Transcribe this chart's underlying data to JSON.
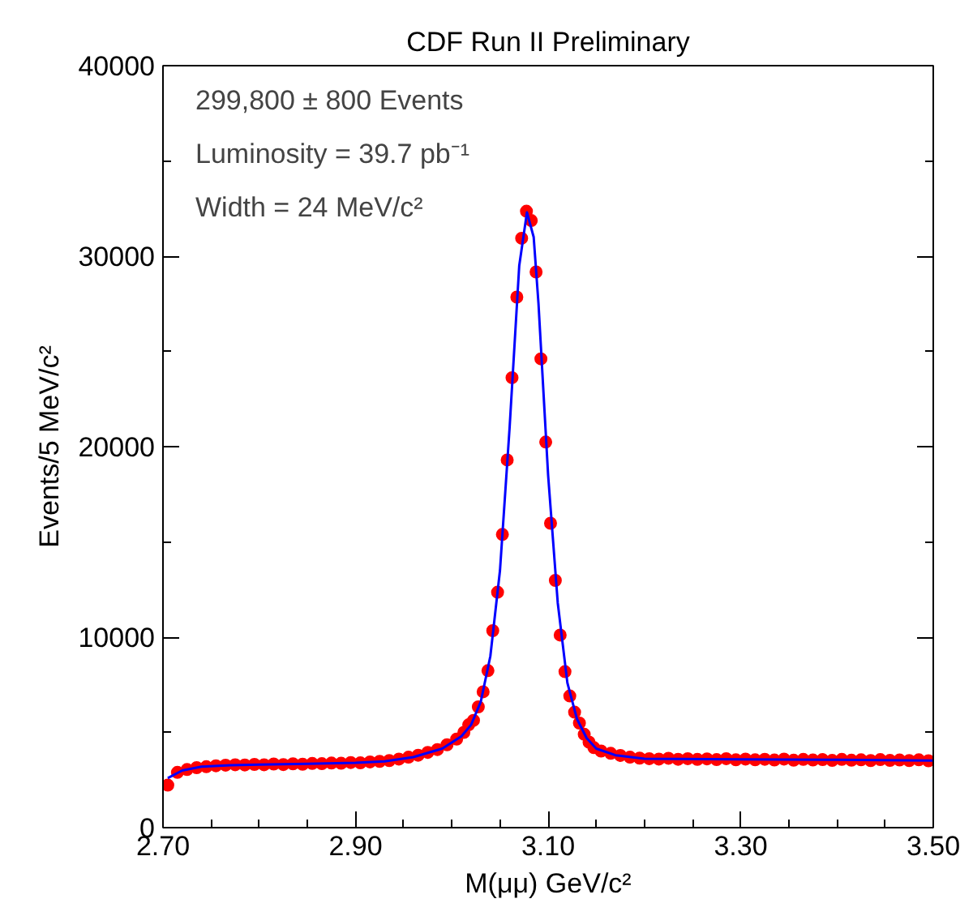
{
  "chart_data": {
    "type": "scatter",
    "title": "CDF Run II Preliminary",
    "xlabel": "M(μμ) GeV/c²",
    "ylabel": "Events/5 MeV/c²",
    "annotations": [
      "299,800 ± 800 Events",
      "Luminosity = 39.7 pb⁻¹",
      "Width = 24 MeV/c²"
    ],
    "xlim": [
      2.7,
      3.5
    ],
    "xticks": [
      {
        "value": 2.7,
        "label": "2.70"
      },
      {
        "value": 2.75,
        "label": null
      },
      {
        "value": 2.8,
        "label": null
      },
      {
        "value": 2.85,
        "label": null
      },
      {
        "value": 2.9,
        "label": "2.90"
      },
      {
        "value": 2.95,
        "label": null
      },
      {
        "value": 3.0,
        "label": null
      },
      {
        "value": 3.05,
        "label": null
      },
      {
        "value": 3.1,
        "label": "3.10"
      },
      {
        "value": 3.15,
        "label": null
      },
      {
        "value": 3.2,
        "label": null
      },
      {
        "value": 3.25,
        "label": null
      },
      {
        "value": 3.3,
        "label": "3.30"
      },
      {
        "value": 3.35,
        "label": null
      },
      {
        "value": 3.4,
        "label": null
      },
      {
        "value": 3.45,
        "label": null
      },
      {
        "value": 3.5,
        "label": "3.50"
      }
    ],
    "ylim": [
      0,
      40000
    ],
    "yticks": [
      0,
      {
        "value": 5000,
        "label": null
      },
      10000,
      {
        "value": 15000,
        "label": null
      },
      20000,
      {
        "value": 25000,
        "label": null
      },
      30000,
      {
        "value": 35000,
        "label": null
      },
      40000
    ],
    "grid": false,
    "marker": "circle",
    "series": [
      {
        "color": "#ff0000",
        "x": [
          2.705,
          2.715,
          2.725,
          2.735,
          2.745,
          2.755,
          2.765,
          2.775,
          2.785,
          2.795,
          2.805,
          2.815,
          2.825,
          2.835,
          2.845,
          2.855,
          2.865,
          2.875,
          2.885,
          2.895,
          2.905,
          2.915,
          2.925,
          2.935,
          2.945,
          2.955,
          2.965,
          2.975,
          2.985,
          2.995,
          3.005,
          3.0125,
          3.0175,
          3.0225,
          3.0275,
          3.0325,
          3.0375,
          3.0425,
          3.0475,
          3.0525,
          3.0575,
          3.0625,
          3.0675,
          3.0725,
          3.0775,
          3.0825,
          3.0875,
          3.0925,
          3.0975,
          3.1025,
          3.1075,
          3.1125,
          3.1175,
          3.1225,
          3.1275,
          3.1325,
          3.1375,
          3.1425,
          3.1475,
          3.155,
          3.165,
          3.175,
          3.185,
          3.195,
          3.205,
          3.215,
          3.225,
          3.235,
          3.245,
          3.255,
          3.265,
          3.275,
          3.285,
          3.295,
          3.305,
          3.315,
          3.325,
          3.335,
          3.345,
          3.355,
          3.365,
          3.375,
          3.385,
          3.395,
          3.405,
          3.415,
          3.425,
          3.435,
          3.445,
          3.455,
          3.465,
          3.475,
          3.485,
          3.495
        ],
        "values": [
          2230,
          2900,
          3050,
          3150,
          3200,
          3250,
          3280,
          3300,
          3290,
          3320,
          3300,
          3340,
          3310,
          3350,
          3330,
          3370,
          3360,
          3390,
          3380,
          3420,
          3400,
          3450,
          3480,
          3520,
          3600,
          3700,
          3800,
          3950,
          4100,
          4350,
          4650,
          5000,
          5400,
          5630,
          6340,
          7130,
          8240,
          10340,
          12360,
          15390,
          19300,
          23620,
          27850,
          30940,
          32360,
          31870,
          29170,
          24610,
          20240,
          15980,
          12980,
          10110,
          8190,
          6910,
          6060,
          5490,
          4900,
          4490,
          4200,
          4020,
          3900,
          3790,
          3700,
          3650,
          3620,
          3600,
          3640,
          3590,
          3620,
          3580,
          3610,
          3570,
          3620,
          3560,
          3600,
          3560,
          3590,
          3550,
          3600,
          3540,
          3580,
          3550,
          3570,
          3530,
          3580,
          3540,
          3560,
          3520,
          3570,
          3530,
          3550,
          3520,
          3560,
          3510
        ]
      },
      {
        "type": "line",
        "color": "#0000ff",
        "marker": "none",
        "x": [
          2.705,
          2.72,
          2.74,
          2.77,
          2.8,
          2.85,
          2.9,
          2.93,
          2.96,
          2.99,
          3.01,
          3.02,
          3.03,
          3.04,
          3.05,
          3.06,
          3.07,
          3.078,
          3.085,
          3.09,
          3.1,
          3.11,
          3.12,
          3.13,
          3.14,
          3.15,
          3.17,
          3.2,
          3.3,
          3.4,
          3.5
        ],
        "values": [
          2600,
          3000,
          3200,
          3280,
          3310,
          3350,
          3400,
          3480,
          3700,
          4150,
          4800,
          5400,
          6600,
          9000,
          13500,
          21000,
          29500,
          32300,
          31000,
          27500,
          18500,
          11800,
          7600,
          5700,
          4700,
          4150,
          3800,
          3620,
          3580,
          3560,
          3520
        ]
      }
    ]
  }
}
